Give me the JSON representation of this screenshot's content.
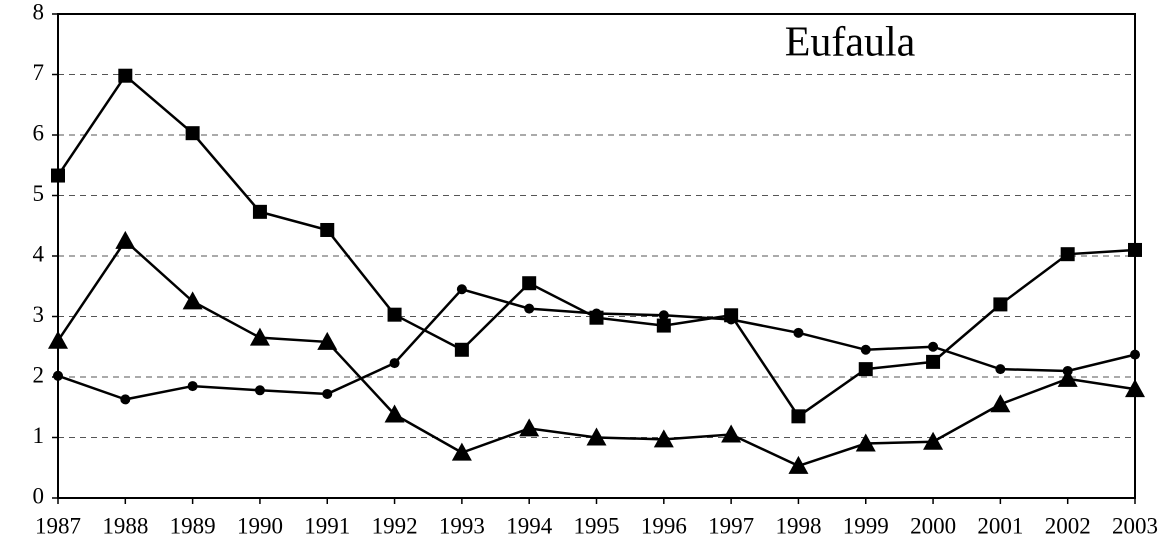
{
  "chart_data": {
    "type": "line",
    "title": "Eufaula",
    "x": [
      1987,
      1988,
      1989,
      1990,
      1991,
      1992,
      1993,
      1994,
      1995,
      1996,
      1997,
      1998,
      1999,
      2000,
      2001,
      2002,
      2003
    ],
    "xlim": [
      1987,
      2003
    ],
    "xticks": [
      1987,
      1988,
      1989,
      1990,
      1991,
      1992,
      1993,
      1994,
      1995,
      1996,
      1997,
      1998,
      1999,
      2000,
      2001,
      2002,
      2003
    ],
    "ylim": [
      0,
      8
    ],
    "yticks": [
      0,
      1,
      2,
      3,
      4,
      5,
      6,
      7,
      8
    ],
    "grid": true,
    "series": [
      {
        "marker": "square",
        "color": "#000000",
        "values": [
          5.33,
          6.98,
          6.03,
          4.73,
          4.43,
          3.03,
          2.45,
          3.55,
          2.98,
          2.85,
          3.02,
          1.35,
          2.13,
          2.25,
          3.2,
          4.03,
          4.1
        ]
      },
      {
        "marker": "triangle",
        "color": "#000000",
        "values": [
          2.6,
          4.25,
          3.25,
          2.65,
          2.58,
          1.38,
          0.75,
          1.15,
          1.0,
          0.97,
          1.05,
          0.53,
          0.9,
          0.93,
          1.55,
          1.97,
          1.8
        ]
      },
      {
        "marker": "circle",
        "color": "#000000",
        "values": [
          2.02,
          1.63,
          1.85,
          1.78,
          1.72,
          2.23,
          3.45,
          3.13,
          3.05,
          3.02,
          2.95,
          2.73,
          2.45,
          2.5,
          2.13,
          2.1,
          2.37
        ]
      }
    ]
  }
}
